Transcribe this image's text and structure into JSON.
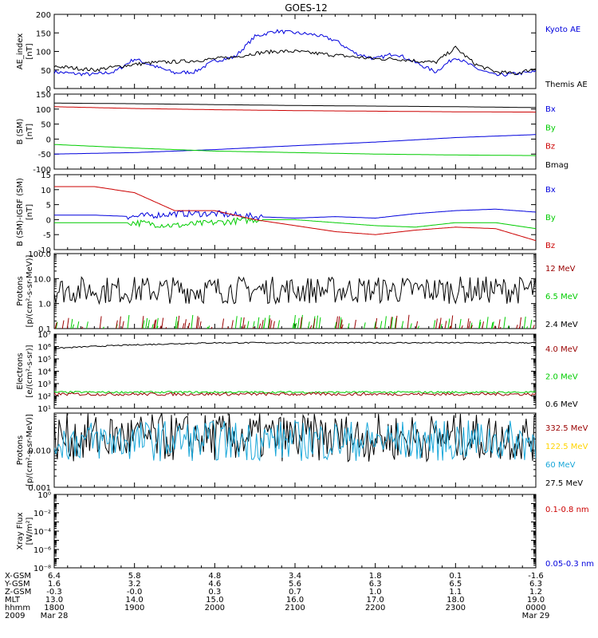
{
  "title": "GOES-12",
  "colors": {
    "black": "#000000",
    "blue": "#0000dd",
    "red": "#cc0000",
    "green": "#00cc00",
    "cyan": "#1aa7d9",
    "yellow": "#ffd400",
    "darkred": "#990000"
  },
  "chart_data": [
    {
      "id": "ae",
      "type": "line",
      "ylabel": [
        "AE_index",
        "[nT]"
      ],
      "ylim": [
        0,
        200
      ],
      "yticks": [
        0,
        50,
        100,
        150,
        200
      ],
      "scale": "linear",
      "legend": [
        {
          "name": "Kyoto AE",
          "color": "blue"
        },
        {
          "name": "Themis AE",
          "color": "black"
        }
      ],
      "x_hours": [
        0,
        0.25,
        0.5,
        0.75,
        1,
        1.25,
        1.5,
        1.75,
        2,
        2.25,
        2.5,
        2.75,
        3,
        3.25,
        3.5,
        3.75,
        4,
        4.25,
        4.5,
        4.75,
        5,
        5.25,
        5.5,
        5.75,
        6
      ],
      "series": [
        {
          "name": "Kyoto AE",
          "color": "blue",
          "values": [
            45,
            40,
            38,
            45,
            80,
            60,
            42,
            45,
            75,
            85,
            140,
            155,
            150,
            145,
            130,
            95,
            80,
            95,
            70,
            45,
            85,
            55,
            35,
            40,
            45
          ]
        },
        {
          "name": "Themis AE",
          "color": "black",
          "values": [
            60,
            55,
            50,
            58,
            65,
            70,
            72,
            75,
            80,
            85,
            95,
            100,
            100,
            95,
            90,
            85,
            80,
            80,
            75,
            70,
            110,
            65,
            45,
            40,
            55
          ]
        }
      ]
    },
    {
      "id": "bsm",
      "type": "line",
      "ylabel": [
        "B (SM)",
        "[nT]"
      ],
      "ylim": [
        -100,
        150
      ],
      "yticks": [
        -100,
        -50,
        0,
        50,
        100,
        150
      ],
      "scale": "linear",
      "legend": [
        {
          "name": "Bx",
          "color": "blue"
        },
        {
          "name": "By",
          "color": "green"
        },
        {
          "name": "Bz",
          "color": "red"
        },
        {
          "name": "Bmag",
          "color": "black"
        }
      ],
      "x_hours": [
        0,
        1,
        2,
        3,
        4,
        5,
        6
      ],
      "series": [
        {
          "name": "Bmag",
          "color": "black",
          "values": [
            120,
            118,
            115,
            112,
            110,
            108,
            105
          ]
        },
        {
          "name": "Bz",
          "color": "red",
          "values": [
            108,
            102,
            98,
            95,
            93,
            91,
            90
          ]
        },
        {
          "name": "Bx",
          "color": "blue",
          "values": [
            -50,
            -45,
            -35,
            -22,
            -10,
            5,
            15
          ]
        },
        {
          "name": "By",
          "color": "green",
          "values": [
            -18,
            -30,
            -40,
            -45,
            -50,
            -53,
            -55
          ]
        }
      ]
    },
    {
      "id": "bdiff",
      "type": "line",
      "ylabel": [
        "B (SM)-IGRF (SM)",
        "[nT]"
      ],
      "ylim": [
        -10,
        15
      ],
      "yticks": [
        -10,
        -5,
        0,
        5,
        10,
        15
      ],
      "scale": "linear",
      "legend": [
        {
          "name": "Bx",
          "color": "blue"
        },
        {
          "name": "By",
          "color": "green"
        },
        {
          "name": "Bz",
          "color": "red"
        }
      ],
      "x_hours": [
        0,
        0.5,
        1,
        1.25,
        1.5,
        2,
        2.5,
        3,
        3.5,
        4,
        4.5,
        5,
        5.5,
        6
      ],
      "series": [
        {
          "name": "Bx",
          "color": "blue",
          "values": [
            1.5,
            1.5,
            1,
            1.5,
            2,
            2,
            1,
            0.5,
            1,
            0.5,
            2,
            3,
            3.5,
            2.5
          ]
        },
        {
          "name": "By",
          "color": "green",
          "values": [
            -1,
            -1,
            -1,
            -1.5,
            -2,
            -1,
            0,
            0,
            -1,
            -2,
            -2.5,
            -1,
            -1,
            -3
          ]
        },
        {
          "name": "Bz",
          "color": "red",
          "values": [
            11,
            11,
            9,
            6,
            3,
            3,
            0,
            -2,
            -4,
            -5,
            -3.5,
            -2.5,
            -3,
            -7
          ]
        }
      ]
    },
    {
      "id": "protons_hi",
      "type": "line",
      "ylabel": [
        "Protons",
        "[p/(cm²-s-sr-MeV)]"
      ],
      "scale": "log",
      "yticks": [
        0.1,
        1.0,
        10.0,
        100.0
      ],
      "ytick_labels": [
        "0.1",
        "1.0",
        "10.0",
        "100.0"
      ],
      "ylim": [
        0.1,
        100
      ],
      "legend": [
        {
          "name": "12 MeV",
          "color": "darkred"
        },
        {
          "name": "6.5 MeV",
          "color": "green"
        },
        {
          "name": "2.4 MeV",
          "color": "black"
        }
      ],
      "series": [
        {
          "name": "2.4 MeV",
          "color": "black",
          "level": 3.5,
          "jitter": 0.55
        },
        {
          "name": "6.5 MeV",
          "color": "green",
          "level": 0.1,
          "spikes": 0.25
        },
        {
          "name": "12 MeV",
          "color": "darkred",
          "level": 0.1,
          "spikes": 0.2
        }
      ]
    },
    {
      "id": "electrons",
      "type": "line",
      "ylabel": [
        "Electrons",
        "[e/(cm²-s-sr)]"
      ],
      "scale": "log",
      "yticks": [
        10,
        100,
        1000,
        10000,
        100000,
        1000000,
        10000000
      ],
      "ytick_labels": [
        "10¹",
        "10²",
        "10³",
        "10⁴",
        "10⁵",
        "10⁶",
        "10⁷"
      ],
      "ylim": [
        10,
        10000000
      ],
      "legend": [
        {
          "name": "4.0 MeV",
          "color": "darkred"
        },
        {
          "name": "2.0 MeV",
          "color": "green"
        },
        {
          "name": "0.6 MeV",
          "color": "black"
        }
      ],
      "series": [
        {
          "name": "0.6 MeV",
          "color": "black",
          "level": 700000,
          "ramp": 2000000,
          "jitter": 0.05
        },
        {
          "name": "2.0 MeV",
          "color": "green",
          "level": 200,
          "jitter": 0.08
        },
        {
          "name": "4.0 MeV",
          "color": "darkred",
          "level": 140,
          "jitter": 0.12
        }
      ]
    },
    {
      "id": "protons_lo",
      "type": "line",
      "ylabel": [
        "Protons",
        "[p/(cm²-s-sr-MeV)]"
      ],
      "scale": "log",
      "yticks": [
        0.001,
        0.01,
        0.1
      ],
      "ytick_labels": [
        "0.001",
        "0.010",
        ""
      ],
      "ylim": [
        0.001,
        0.1
      ],
      "legend": [
        {
          "name": "332.5 MeV",
          "color": "darkred"
        },
        {
          "name": "122.5 MeV",
          "color": "yellow"
        },
        {
          "name": "60 MeV",
          "color": "cyan"
        },
        {
          "name": "27.5 MeV",
          "color": "black"
        }
      ],
      "series": [
        {
          "name": "27.5 MeV",
          "color": "black",
          "level": 0.022,
          "jitter": 0.65
        },
        {
          "name": "60 MeV",
          "color": "cyan",
          "level": 0.018,
          "jitter": 0.55
        }
      ]
    },
    {
      "id": "xray",
      "type": "line",
      "ylabel": [
        "Xray Flux",
        "[W/m²]"
      ],
      "scale": "log",
      "yticks": [
        1e-08,
        1e-07,
        1e-06,
        1e-05,
        0.0001,
        0.001,
        0.01,
        0.1,
        1
      ],
      "ytick_labels": [
        "10⁻⁸",
        "",
        "10⁻⁶",
        "",
        "10⁻⁴",
        "",
        "10⁻²",
        "",
        "10⁰"
      ],
      "ylim": [
        1e-08,
        1
      ],
      "legend": [
        {
          "name": "0.1-0.8 nm",
          "color": "red"
        },
        {
          "name": "0.05-0.3 nm",
          "color": "blue"
        }
      ],
      "series": []
    }
  ],
  "footer": {
    "rows": [
      {
        "label": "X-GSM",
        "values": [
          "6.4",
          "5.8",
          "4.8",
          "3.4",
          "1.8",
          "0.1",
          "-1.6"
        ]
      },
      {
        "label": "Y-GSM",
        "values": [
          "1.6",
          "3.2",
          "4.6",
          "5.6",
          "6.3",
          "6.5",
          "6.3"
        ]
      },
      {
        "label": "Z-GSM",
        "values": [
          "-0.3",
          "-0.0",
          "0.3",
          "0.7",
          "1.0",
          "1.1",
          "1.2"
        ]
      },
      {
        "label": "MLT",
        "values": [
          "13.0",
          "14.0",
          "15.0",
          "16.0",
          "17.0",
          "18.0",
          "19.0"
        ]
      },
      {
        "label": "hhmm",
        "values": [
          "1800",
          "1900",
          "2000",
          "2100",
          "2200",
          "2300",
          "0000"
        ]
      },
      {
        "label": "2009",
        "values": [
          "Mar 28",
          "",
          "",
          "",
          "",
          "",
          "Mar 29"
        ]
      }
    ]
  }
}
